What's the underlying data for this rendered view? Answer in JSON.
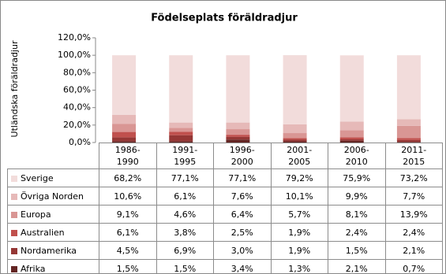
{
  "chart_data": {
    "type": "bar",
    "stacked": true,
    "title": "Födelseplats föräldradjur",
    "y_label": "Utländska föräldradjur",
    "categories": [
      "1986-1990",
      "1991-1995",
      "1996-2000",
      "2001-2005",
      "2006-2010",
      "2011-2015"
    ],
    "ylim": [
      0,
      120
    ],
    "yticks": [
      {
        "value": 0,
        "label": "0,0%"
      },
      {
        "value": 20,
        "label": "20,0%"
      },
      {
        "value": 40,
        "label": "40,0%"
      },
      {
        "value": 60,
        "label": "60,0%"
      },
      {
        "value": 80,
        "label": "80,0%"
      },
      {
        "value": 100,
        "label": "100,0%"
      },
      {
        "value": 120,
        "label": "120,0%"
      }
    ],
    "series": [
      {
        "name": "Sverige",
        "color": "#f2dcdb",
        "values": [
          68.2,
          77.1,
          77.1,
          79.2,
          75.9,
          73.2
        ],
        "value_labels": [
          "68,2%",
          "77,1%",
          "77,1%",
          "79,2%",
          "75,9%",
          "73,2%"
        ]
      },
      {
        "name": "Övriga Norden",
        "color": "#e6b9b8",
        "values": [
          10.6,
          6.1,
          7.6,
          10.1,
          9.9,
          7.7
        ],
        "value_labels": [
          "10,6%",
          "6,1%",
          "7,6%",
          "10,1%",
          "9,9%",
          "7,7%"
        ]
      },
      {
        "name": "Europa",
        "color": "#d99694",
        "values": [
          9.1,
          4.6,
          6.4,
          5.7,
          8.1,
          13.9
        ],
        "value_labels": [
          "9,1%",
          "4,6%",
          "6,4%",
          "5,7%",
          "8,1%",
          "13,9%"
        ]
      },
      {
        "name": "Australien",
        "color": "#c0504d",
        "values": [
          6.1,
          3.8,
          2.5,
          1.9,
          2.4,
          2.4
        ],
        "value_labels": [
          "6,1%",
          "3,8%",
          "2,5%",
          "1,9%",
          "2,4%",
          "2,4%"
        ]
      },
      {
        "name": "Nordamerika",
        "color": "#953735",
        "values": [
          4.5,
          6.9,
          3.0,
          1.9,
          1.5,
          2.1
        ],
        "value_labels": [
          "4,5%",
          "6,9%",
          "3,0%",
          "1,9%",
          "1,5%",
          "2,1%"
        ]
      },
      {
        "name": "Afrika",
        "color": "#632523",
        "values": [
          1.5,
          1.5,
          3.4,
          1.3,
          2.1,
          0.7
        ],
        "value_labels": [
          "1,5%",
          "1,5%",
          "3,4%",
          "1,3%",
          "2,1%",
          "0,7%"
        ]
      }
    ]
  }
}
